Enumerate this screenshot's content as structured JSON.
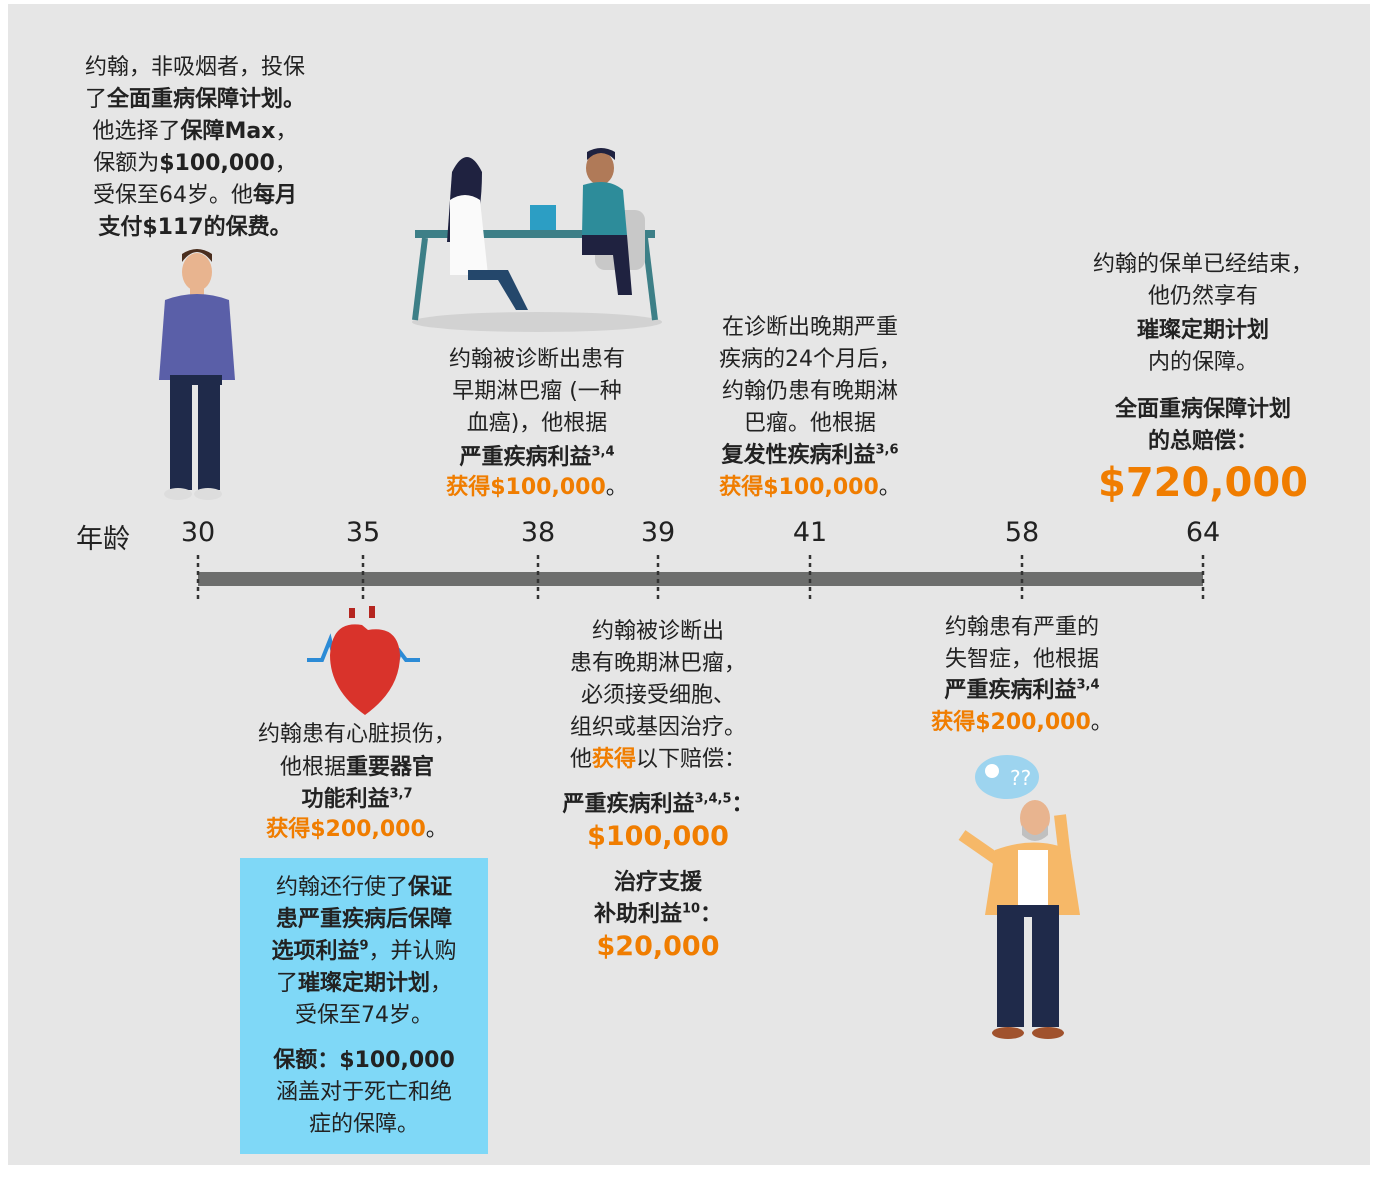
{
  "age_label": "年龄",
  "ages": [
    "30",
    "35",
    "38",
    "39",
    "41",
    "58",
    "64"
  ],
  "blocks": {
    "intro": [
      "约翰，非吸烟者，投保",
      "了",
      "全面重病保障计划。",
      "他选择了",
      "保障Max",
      "，",
      "保额为",
      "$100,000",
      "，",
      "受保至64岁。他",
      "每月",
      "支付$117的保费。"
    ],
    "age38": [
      "约翰被诊断出患有",
      "早期淋巴瘤 (一种",
      "血癌)，他根据",
      "严重疾病利益",
      "3,4",
      "获得$100,000",
      "。"
    ],
    "age41": [
      "在诊断出晚期严重",
      "疾病的24个月后，",
      "约翰仍患有晚期淋",
      "巴瘤。他根据",
      "复发性疾病利益",
      "3,6",
      "获得$100,000",
      "。"
    ],
    "age64": [
      "约翰的保单已经结束，",
      "他仍然享有",
      "璀璨定期计划",
      "内的保障。",
      "全面重病保障计划",
      "的总赔偿：",
      "$720,000"
    ],
    "age35": [
      "约翰患有心脏损伤，",
      "他根据",
      "重要器官",
      "功能利益",
      "3,7",
      "获得$200,000",
      "。"
    ],
    "box": [
      "约翰还行使了",
      "保证",
      "患严重疾病后保障",
      "选项利益",
      "9",
      "，并认购",
      "了",
      "璀璨定期计划",
      "，",
      "受保至74岁。",
      "保额：$100,000",
      "涵盖对于死亡和绝",
      "症的保障。"
    ],
    "age39": [
      "约翰被诊断出",
      "患有晚期淋巴瘤，",
      "必须接受细胞、",
      "组织或基因治疗。",
      "他",
      "获得",
      "以下赔偿：",
      "严重疾病利益",
      "3,4,5",
      "：",
      "$100,000",
      "治疗支援",
      "补助利益",
      "10",
      "：",
      "$20,000"
    ],
    "age58": [
      "约翰患有严重的",
      "失智症，他根据",
      "严重疾病利益",
      "3,4",
      "获得$200,000",
      "。"
    ]
  }
}
